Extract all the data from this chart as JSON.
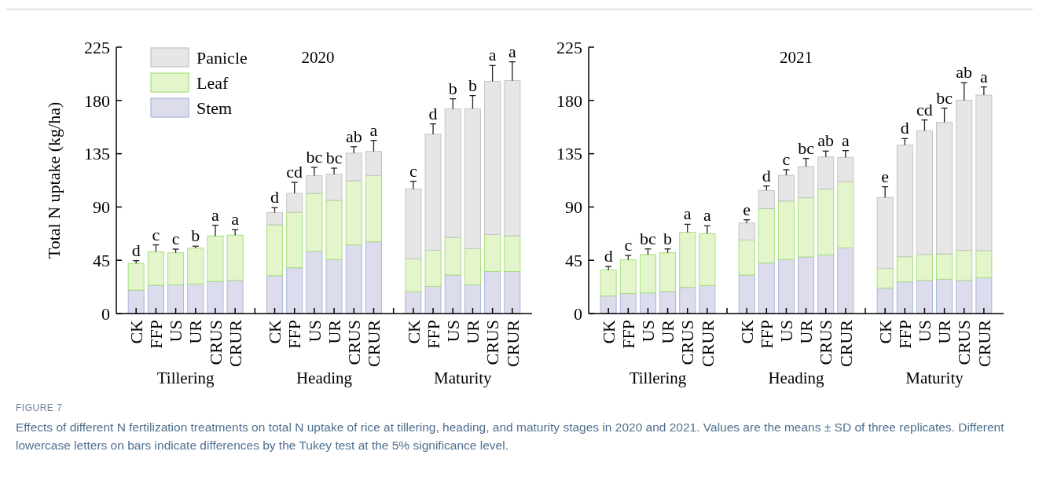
{
  "chart_data": [
    {
      "type": "bar",
      "stacked": true,
      "title": "2020",
      "ylabel": "Total N uptake (kg/ha)",
      "legend": "top left",
      "categories": [
        "CK",
        "FFP",
        "US",
        "UR",
        "CRUS",
        "CRUR",
        null,
        "CK",
        "FFP",
        "US",
        "UR",
        "CRUS",
        "CRUR",
        null,
        "CK",
        "FFP",
        "US",
        "UR",
        "CRUS",
        "CRUR"
      ],
      "ylim": [
        0,
        225
      ],
      "yticks": [
        0,
        45,
        90,
        135,
        180,
        225
      ],
      "series": [
        {
          "name": "Stem",
          "color": "#dcdcec",
          "values": [
            19.9,
            23.9,
            24.3,
            25.0,
            27.2,
            28.1,
            null,
            31.9,
            38.7,
            52.4,
            45.6,
            58.0,
            60.6,
            null,
            18.4,
            23.0,
            32.5,
            24.3,
            35.6,
            35.6
          ]
        },
        {
          "name": "Leaf",
          "color": "#e4f5cc",
          "values": [
            22.4,
            28.3,
            27.0,
            30.3,
            38.3,
            38.1,
            null,
            43.1,
            46.9,
            49.1,
            50.0,
            54.2,
            56.0,
            null,
            27.8,
            30.5,
            31.7,
            30.6,
            31.2,
            30.1
          ]
        },
        {
          "name": "Panicle",
          "color": "#e6e6e6",
          "values": [
            0,
            0,
            0,
            0,
            0,
            0,
            null,
            10.2,
            15.9,
            14.9,
            22.1,
            23.2,
            20.3,
            null,
            58.9,
            98.0,
            108.6,
            118.1,
            129.4,
            131.0
          ],
          "errors": [
            2.4,
            5.8,
            3.1,
            1.6,
            9.1,
            4.6,
            null,
            4.2,
            9.3,
            7.1,
            5.1,
            5.5,
            9.3,
            null,
            6.6,
            8.7,
            8.6,
            11.1,
            13.3,
            15.9
          ],
          "value_labels": [
            "d",
            "c",
            "c",
            "b",
            "a",
            "a",
            null,
            "d",
            "cd",
            "bc",
            "bc",
            "ab",
            "a",
            null,
            "c",
            "d",
            "b",
            "b",
            "a",
            "a"
          ]
        }
      ],
      "annotations": [
        "Tillering",
        "Heading",
        "Maturity",
        "FIGURE 7",
        "Effects of different N fertilization treatments on total N uptake of rice at tillering, heading, and maturity stages in 2020 and 2021. Values are the means ± SD of three replicates. Different lowercase letters on bars indicate differences by the Tukey test at the 5% significance level."
      ]
    },
    {
      "type": "bar",
      "stacked": true,
      "title": "2021",
      "categories": [
        "CK",
        "FFP",
        "US",
        "UR",
        "CRUS",
        "CRUR",
        null,
        "CK",
        "FFP",
        "US",
        "UR",
        "CRUS",
        "CRUR",
        null,
        "CK",
        "FFP",
        "US",
        "UR",
        "CRUS",
        "CRUR"
      ],
      "ylim": [
        0,
        225
      ],
      "yticks": [
        0,
        45,
        90,
        135,
        180,
        225
      ],
      "series": [
        {
          "color": "#dcdcec",
          "values": [
            14.8,
            17.0,
            17.5,
            18.6,
            22.1,
            23.7,
            null,
            32.5,
            42.7,
            45.6,
            47.8,
            49.6,
            55.5,
            null,
            21.5,
            26.8,
            28.1,
            29.0,
            28.1,
            30.3
          ]
        },
        {
          "color": "#e4f5cc",
          "values": [
            21.9,
            28.4,
            32.3,
            32.7,
            46.5,
            43.8,
            null,
            29.7,
            46.0,
            49.5,
            50.0,
            55.5,
            55.8,
            null,
            16.6,
            21.2,
            21.9,
            21.4,
            25.2,
            22.8
          ]
        },
        {
          "color": "#e6e6e6",
          "values": [
            0,
            0,
            0,
            0,
            0,
            0,
            null,
            14.3,
            15.3,
            21.7,
            26.3,
            27.2,
            20.6,
            null,
            59.9,
            94.3,
            104.4,
            111.1,
            126.8,
            131.4
          ],
          "errors": [
            3.1,
            3.7,
            4.8,
            3.3,
            6.8,
            6.6,
            null,
            2.7,
            3.7,
            4.7,
            6.9,
            4.9,
            5.7,
            null,
            9.1,
            5.5,
            9.1,
            12.0,
            14.8,
            6.9
          ],
          "value_labels": [
            "d",
            "c",
            "bc",
            "b",
            "a",
            "a",
            null,
            "e",
            "d",
            "c",
            "bc",
            "ab",
            "a",
            null,
            "e",
            "d",
            "cd",
            "bc",
            "ab",
            "a"
          ]
        }
      ],
      "annotations": [
        "Tillering",
        "Heading",
        "Maturity"
      ]
    }
  ]
}
